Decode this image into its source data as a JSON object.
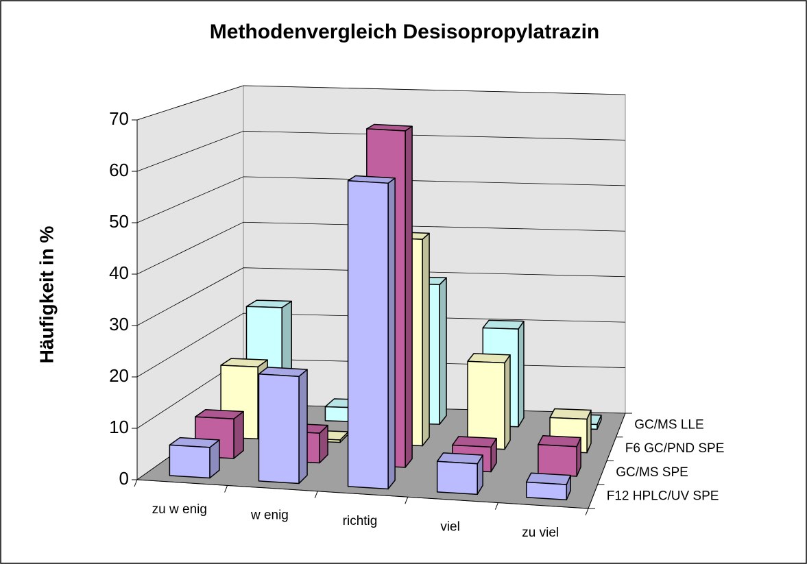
{
  "chart_data": {
    "type": "bar3d",
    "title": "Methodenvergleich Desisopropylatrazin",
    "y_label": "Häufigkeit in %",
    "categories": [
      "zu w enig",
      "w enig",
      "richtig",
      "viel",
      "zu viel"
    ],
    "series": [
      {
        "name": "F12 HPLC/UV SPE",
        "color": "#BBBBFF",
        "values": [
          6,
          21,
          60,
          6,
          3
        ]
      },
      {
        "name": "GC/MS SPE",
        "color": "#C0609F",
        "values": [
          8,
          6,
          68,
          5,
          6
        ]
      },
      {
        "name": "F6 GC/PND SPE",
        "color": "#FFFFCC",
        "values": [
          15,
          0.5,
          43,
          18,
          7
        ]
      },
      {
        "name": "GC/MS LLE",
        "color": "#CCFFFF",
        "values": [
          24,
          3,
          30,
          21,
          1
        ]
      }
    ],
    "ylim": [
      0,
      70
    ],
    "yticks": [
      0,
      10,
      20,
      30,
      40,
      50,
      60,
      70
    ],
    "grid": true
  }
}
